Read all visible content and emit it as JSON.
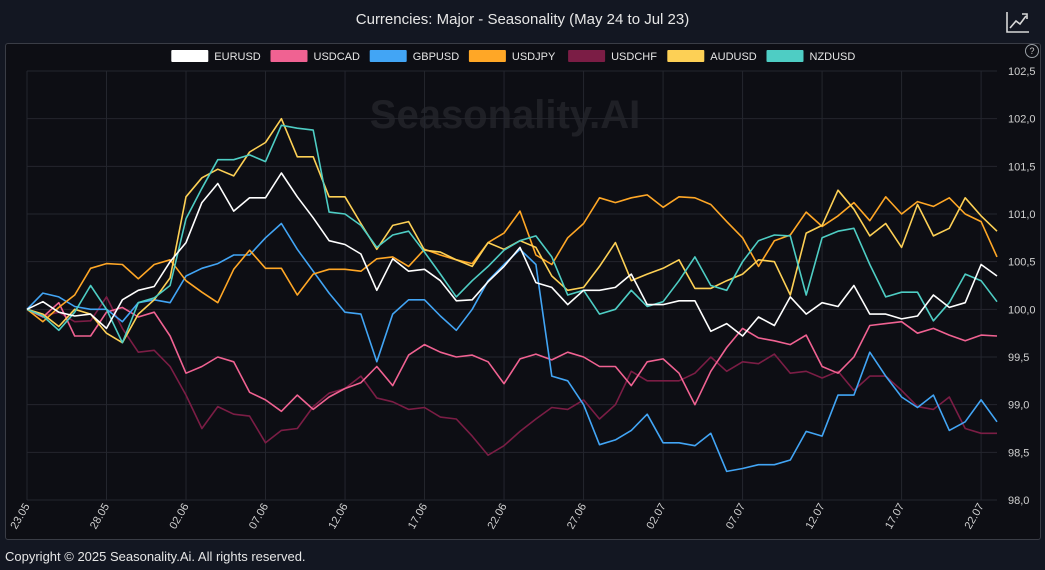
{
  "title": "Currencies: Major - Seasonality (May 24 to Jul 23)",
  "watermark": "Seasonality.AI",
  "copyright": "Copyright © 2025 Seasonality.Ai. All rights reserved.",
  "help_icon_label": "?",
  "colors": {
    "background": "#131722",
    "plot_background": "#0d0e14",
    "grid": "#24262e",
    "axis_text": "#d0d0d0"
  },
  "chart_data": {
    "type": "line",
    "x": [
      "23.05",
      "24.05",
      "25.05",
      "26.05",
      "27.05",
      "28.05",
      "29.05",
      "30.05",
      "31.05",
      "01.06",
      "02.06",
      "03.06",
      "04.06",
      "05.06",
      "06.06",
      "07.06",
      "08.06",
      "09.06",
      "10.06",
      "11.06",
      "12.06",
      "13.06",
      "14.06",
      "15.06",
      "16.06",
      "17.06",
      "18.06",
      "19.06",
      "20.06",
      "21.06",
      "22.06",
      "23.06",
      "24.06",
      "25.06",
      "26.06",
      "27.06",
      "28.06",
      "29.06",
      "30.06",
      "01.07",
      "02.07",
      "03.07",
      "04.07",
      "05.07",
      "06.07",
      "07.07",
      "08.07",
      "09.07",
      "10.07",
      "11.07",
      "12.07",
      "13.07",
      "14.07",
      "15.07",
      "16.07",
      "17.07",
      "18.07",
      "19.07",
      "20.07",
      "21.07",
      "22.07",
      "23.07"
    ],
    "x_tick_labels": [
      "23.05",
      "28.05",
      "02.06",
      "07.06",
      "12.06",
      "17.06",
      "22.06",
      "27.06",
      "02.07",
      "07.07",
      "12.07",
      "17.07",
      "22.07"
    ],
    "y_ticks": [
      "98,0",
      "98,5",
      "99,0",
      "99,5",
      "100,0",
      "100,5",
      "101,0",
      "101,5",
      "102,0",
      "102,5"
    ],
    "ylim": [
      98.0,
      102.5
    ],
    "grid": true,
    "legend_position": "top-center",
    "series": [
      {
        "name": "EURUSD",
        "color": "#ffffff",
        "values": [
          100.0,
          100.08,
          99.97,
          99.93,
          99.95,
          99.8,
          100.1,
          100.2,
          100.24,
          100.5,
          100.7,
          101.12,
          101.32,
          101.03,
          101.17,
          101.17,
          101.43,
          101.18,
          100.96,
          100.72,
          100.68,
          100.58,
          100.2,
          100.53,
          100.4,
          100.42,
          100.3,
          100.09,
          100.1,
          100.29,
          100.45,
          100.65,
          100.28,
          100.23,
          100.05,
          100.2,
          100.2,
          100.23,
          100.37,
          100.05,
          100.05,
          100.09,
          100.09,
          99.77,
          99.85,
          99.72,
          99.92,
          99.83,
          100.13,
          99.95,
          100.07,
          100.03,
          100.25,
          99.95,
          99.95,
          99.9,
          99.93,
          100.15,
          100.02,
          100.07,
          100.47,
          100.35
        ]
      },
      {
        "name": "USDCAD",
        "color": "#f06292",
        "values": [
          100.0,
          99.92,
          100.07,
          99.72,
          99.72,
          99.97,
          100.02,
          99.92,
          99.97,
          99.72,
          99.33,
          99.4,
          99.5,
          99.45,
          99.13,
          99.05,
          98.93,
          99.1,
          98.95,
          99.08,
          99.17,
          99.23,
          99.4,
          99.2,
          99.52,
          99.63,
          99.55,
          99.5,
          99.52,
          99.45,
          99.22,
          99.48,
          99.53,
          99.47,
          99.55,
          99.5,
          99.4,
          99.4,
          99.2,
          99.45,
          99.48,
          99.33,
          99.0,
          99.35,
          99.6,
          99.8,
          99.7,
          99.67,
          99.63,
          99.73,
          99.4,
          99.33,
          99.5,
          99.83,
          99.85,
          99.87,
          99.75,
          99.8,
          99.73,
          99.67,
          99.73,
          99.72
        ]
      },
      {
        "name": "GBPUSD",
        "color": "#42a5f5",
        "values": [
          100.0,
          100.17,
          100.13,
          100.03,
          100.0,
          100.0,
          99.87,
          100.07,
          100.1,
          100.07,
          100.35,
          100.43,
          100.48,
          100.57,
          100.57,
          100.75,
          100.9,
          100.63,
          100.4,
          100.17,
          99.97,
          99.95,
          99.45,
          99.95,
          100.1,
          100.1,
          99.93,
          99.78,
          100.0,
          100.3,
          100.47,
          100.63,
          100.47,
          99.3,
          99.25,
          99.0,
          98.58,
          98.63,
          98.73,
          98.9,
          98.6,
          98.6,
          98.57,
          98.7,
          98.3,
          98.33,
          98.37,
          98.37,
          98.42,
          98.72,
          98.67,
          99.1,
          99.1,
          99.55,
          99.3,
          99.08,
          98.97,
          99.1,
          98.73,
          98.82,
          99.05,
          98.82
        ]
      },
      {
        "name": "USDJPY",
        "color": "#ffa726",
        "values": [
          100.0,
          99.87,
          100.02,
          100.15,
          100.43,
          100.48,
          100.47,
          100.32,
          100.47,
          100.52,
          100.3,
          100.18,
          100.07,
          100.42,
          100.62,
          100.43,
          100.43,
          100.15,
          100.37,
          100.42,
          100.42,
          100.4,
          100.53,
          100.55,
          100.45,
          100.63,
          100.57,
          100.52,
          100.48,
          100.7,
          100.8,
          101.03,
          100.57,
          100.47,
          100.75,
          100.9,
          101.17,
          101.12,
          101.17,
          101.2,
          101.07,
          101.18,
          101.17,
          101.1,
          100.92,
          100.75,
          100.45,
          100.72,
          100.78,
          101.02,
          100.87,
          100.98,
          101.12,
          100.93,
          101.18,
          101.0,
          101.13,
          101.08,
          101.17,
          101.0,
          100.92,
          100.55
        ]
      },
      {
        "name": "USDCHF",
        "color": "#7b1d45",
        "values": [
          100.0,
          99.93,
          99.97,
          99.87,
          99.88,
          100.13,
          99.8,
          99.55,
          99.57,
          99.4,
          99.1,
          98.75,
          98.98,
          98.9,
          98.88,
          98.6,
          98.73,
          98.75,
          98.98,
          99.12,
          99.17,
          99.3,
          99.07,
          99.03,
          98.95,
          98.97,
          98.87,
          98.85,
          98.67,
          98.47,
          98.57,
          98.72,
          98.85,
          98.97,
          98.95,
          99.05,
          98.85,
          99.0,
          99.35,
          99.25,
          99.25,
          99.25,
          99.33,
          99.5,
          99.35,
          99.45,
          99.43,
          99.53,
          99.33,
          99.35,
          99.28,
          99.35,
          99.15,
          99.3,
          99.3,
          99.15,
          98.98,
          98.95,
          99.08,
          98.75,
          98.7,
          98.7
        ]
      },
      {
        "name": "AUDUSD",
        "color": "#fdd055",
        "values": [
          100.0,
          99.95,
          99.82,
          100.0,
          99.95,
          99.75,
          99.65,
          99.95,
          100.1,
          100.33,
          101.18,
          101.38,
          101.47,
          101.4,
          101.65,
          101.75,
          102.0,
          101.6,
          101.6,
          101.18,
          101.18,
          100.9,
          100.63,
          100.88,
          100.92,
          100.62,
          100.6,
          100.52,
          100.45,
          100.7,
          100.63,
          100.72,
          100.65,
          100.35,
          100.2,
          100.23,
          100.45,
          100.7,
          100.3,
          100.37,
          100.43,
          100.52,
          100.22,
          100.22,
          100.3,
          100.37,
          100.52,
          100.5,
          100.15,
          100.8,
          100.88,
          101.25,
          101.05,
          100.77,
          100.9,
          100.65,
          101.1,
          100.77,
          100.85,
          101.17,
          100.98,
          100.82
        ]
      },
      {
        "name": "NZDUSD",
        "color": "#4ecdc4",
        "values": [
          100.0,
          99.93,
          99.78,
          99.97,
          100.25,
          100.0,
          99.65,
          100.07,
          100.12,
          100.25,
          100.95,
          101.27,
          101.57,
          101.57,
          101.62,
          101.55,
          101.93,
          101.9,
          101.88,
          101.02,
          101.0,
          100.88,
          100.65,
          100.78,
          100.82,
          100.6,
          100.37,
          100.13,
          100.3,
          100.45,
          100.62,
          100.72,
          100.77,
          100.55,
          100.15,
          100.2,
          99.95,
          100.0,
          100.2,
          100.03,
          100.08,
          100.3,
          100.55,
          100.25,
          100.2,
          100.5,
          100.72,
          100.78,
          100.77,
          100.15,
          100.75,
          100.82,
          100.85,
          100.47,
          100.13,
          100.18,
          100.18,
          99.88,
          100.07,
          100.37,
          100.3,
          100.08
        ]
      }
    ]
  }
}
